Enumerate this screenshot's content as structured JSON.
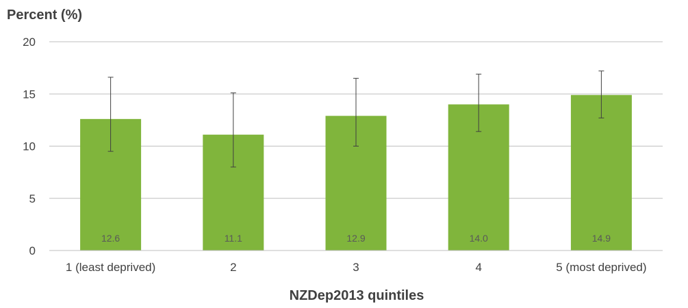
{
  "chart_data": {
    "type": "bar",
    "title": "",
    "ylabel": "Percent (%)",
    "xlabel": "NZDep2013 quintiles",
    "categories": [
      "1 (least deprived)",
      "2",
      "3",
      "4",
      "5 (most deprived)"
    ],
    "values": [
      12.6,
      11.1,
      12.9,
      14.0,
      14.9
    ],
    "data_labels": [
      "12.6",
      "11.1",
      "12.9",
      "14.0",
      "14.9"
    ],
    "error_low": [
      9.5,
      8.0,
      10.0,
      11.4,
      12.7
    ],
    "error_high": [
      16.6,
      15.1,
      16.5,
      16.9,
      17.2
    ],
    "ylim": [
      0,
      20
    ],
    "yticks": [
      0,
      5,
      10,
      15,
      20
    ],
    "grid": true,
    "legend": "none",
    "bar_color": "#80b53c"
  }
}
